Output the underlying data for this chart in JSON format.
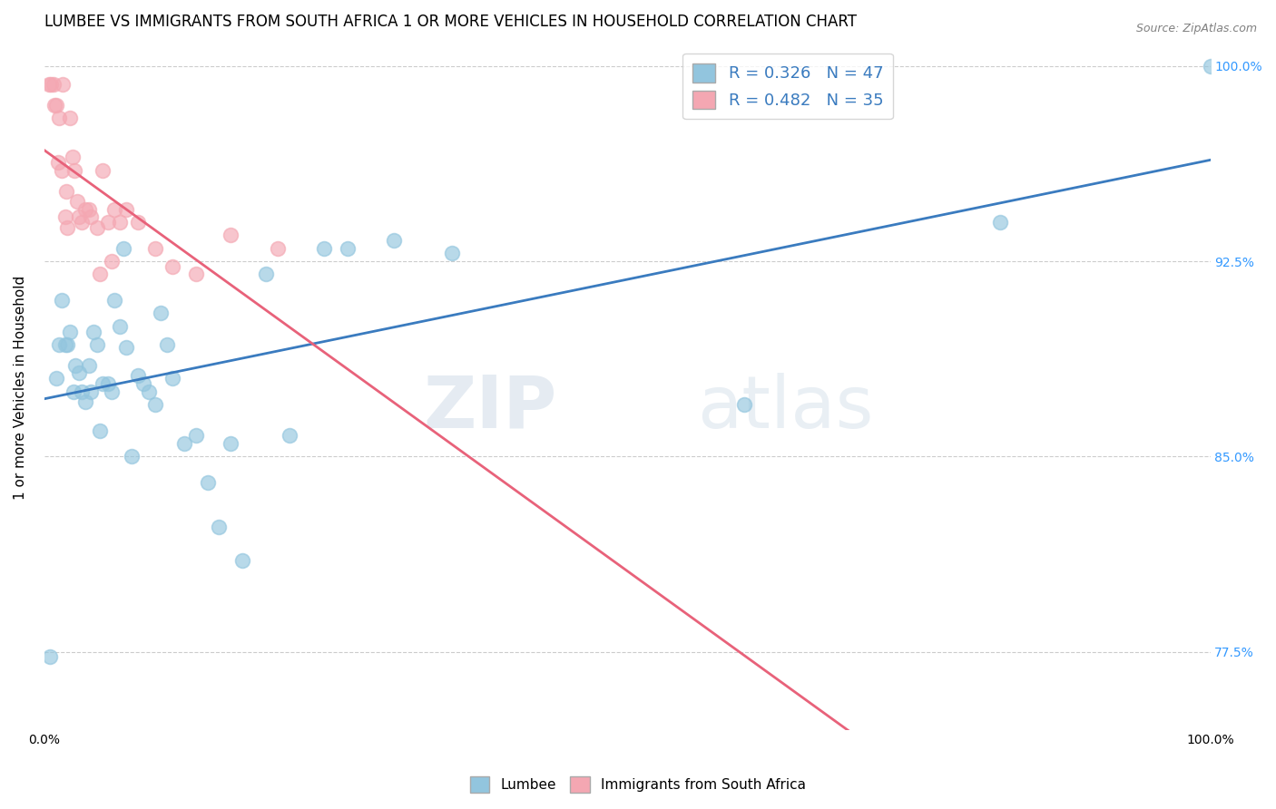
{
  "title": "LUMBEE VS IMMIGRANTS FROM SOUTH AFRICA 1 OR MORE VEHICLES IN HOUSEHOLD CORRELATION CHART",
  "source": "Source: ZipAtlas.com",
  "ylabel": "1 or more Vehicles in Household",
  "xlim": [
    0.0,
    1.0
  ],
  "ylim": [
    0.745,
    1.008
  ],
  "yticks": [
    0.775,
    0.85,
    0.925,
    1.0
  ],
  "ytick_labels": [
    "77.5%",
    "85.0%",
    "92.5%",
    "100.0%"
  ],
  "xticks": [
    0.0,
    0.1,
    0.2,
    0.3,
    0.4,
    0.5,
    0.6,
    0.7,
    0.8,
    0.9,
    1.0
  ],
  "xtick_labels": [
    "0.0%",
    "",
    "",
    "",
    "",
    "",
    "",
    "",
    "",
    "",
    "100.0%"
  ],
  "legend_lumbee": "Lumbee",
  "legend_immigrants": "Immigrants from South Africa",
  "blue_color": "#92C5DE",
  "pink_color": "#F4A7B2",
  "blue_line_color": "#3A7BBF",
  "pink_line_color": "#E8627A",
  "watermark_zip": "ZIP",
  "watermark_atlas": "atlas",
  "background_color": "#ffffff",
  "grid_color": "#cccccc",
  "title_fontsize": 12,
  "axis_label_fontsize": 11,
  "tick_fontsize": 10,
  "legend_fontsize": 13,
  "right_ytick_color": "#3399FF",
  "blue_x": [
    0.005,
    0.01,
    0.013,
    0.015,
    0.018,
    0.02,
    0.022,
    0.025,
    0.027,
    0.03,
    0.032,
    0.035,
    0.038,
    0.04,
    0.042,
    0.045,
    0.048,
    0.05,
    0.055,
    0.058,
    0.06,
    0.065,
    0.068,
    0.07,
    0.075,
    0.08,
    0.085,
    0.09,
    0.095,
    0.1,
    0.105,
    0.11,
    0.12,
    0.13,
    0.14,
    0.15,
    0.16,
    0.17,
    0.19,
    0.21,
    0.24,
    0.26,
    0.3,
    0.35,
    0.6,
    0.82,
    1.0
  ],
  "blue_y": [
    0.773,
    0.88,
    0.893,
    0.91,
    0.893,
    0.893,
    0.898,
    0.875,
    0.885,
    0.882,
    0.875,
    0.871,
    0.885,
    0.875,
    0.898,
    0.893,
    0.86,
    0.878,
    0.878,
    0.875,
    0.91,
    0.9,
    0.93,
    0.892,
    0.85,
    0.881,
    0.878,
    0.875,
    0.87,
    0.905,
    0.893,
    0.88,
    0.855,
    0.858,
    0.84,
    0.823,
    0.855,
    0.81,
    0.92,
    0.858,
    0.93,
    0.93,
    0.933,
    0.928,
    0.87,
    0.94,
    1.0
  ],
  "pink_x": [
    0.004,
    0.006,
    0.008,
    0.009,
    0.01,
    0.012,
    0.013,
    0.015,
    0.016,
    0.018,
    0.019,
    0.02,
    0.022,
    0.024,
    0.026,
    0.028,
    0.03,
    0.032,
    0.035,
    0.038,
    0.04,
    0.045,
    0.048,
    0.05,
    0.055,
    0.058,
    0.06,
    0.065,
    0.07,
    0.08,
    0.095,
    0.11,
    0.13,
    0.16,
    0.2
  ],
  "pink_y": [
    0.993,
    0.993,
    0.993,
    0.985,
    0.985,
    0.963,
    0.98,
    0.96,
    0.993,
    0.942,
    0.952,
    0.938,
    0.98,
    0.965,
    0.96,
    0.948,
    0.942,
    0.94,
    0.945,
    0.945,
    0.942,
    0.938,
    0.92,
    0.96,
    0.94,
    0.925,
    0.945,
    0.94,
    0.945,
    0.94,
    0.93,
    0.923,
    0.92,
    0.935,
    0.93
  ]
}
